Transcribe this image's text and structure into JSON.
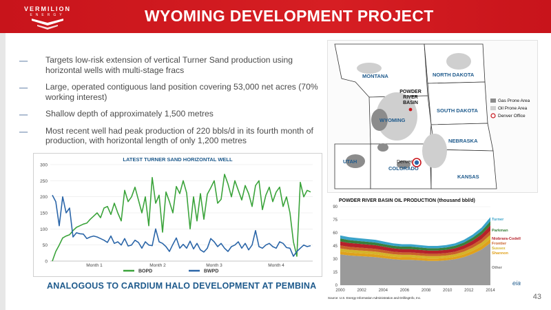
{
  "logo": {
    "name": "VERMILION",
    "sub": "ENERGY"
  },
  "title": "WYOMING DEVELOPMENT PROJECT",
  "bullets": [
    "Targets low-risk extension of vertical Turner Sand production using horizontal wells with multi-stage fracs",
    "Large, operated contiguous land position covering 53,000 net acres (70% working interest)",
    "Shallow depth of approximately 1,500 metres",
    "Most recent well had peak production of 220 bbls/d in its fourth month of production, with horizontal length of only 1,200 metres"
  ],
  "footer_text": "ANALOGOUS TO CARDIUM HALO DEVELOPMENT AT PEMBINA",
  "page_number": "43",
  "map": {
    "states": [
      "MONTANA",
      "NORTH DAKOTA",
      "SOUTH DAKOTA",
      "WYOMING",
      "NEBRASKA",
      "UTAH",
      "COLORADO",
      "KANSAS"
    ],
    "basin_label": [
      "POWDER",
      "RIVER",
      "BASIN"
    ],
    "city": "Denver",
    "legend": [
      "Gas Prone Area",
      "Oil Prone Area",
      "Denver Office"
    ],
    "colors": {
      "gas": "#8c8c8c",
      "oil": "#cfcfcf",
      "office": "#c8141b"
    }
  },
  "chart_data": [
    {
      "type": "line",
      "title": "LATEST TURNER SAND HORIZONTAL WELL",
      "ylim": [
        0,
        300
      ],
      "yticks": [
        "0",
        "50",
        "100",
        "150",
        "200",
        "250",
        "300"
      ],
      "x_labels": [
        "Month 1",
        "Month 2",
        "Month 3",
        "Month 4"
      ],
      "series": [
        {
          "name": "BOPD",
          "color": "#3aa33a",
          "values": [
            0,
            30,
            50,
            72,
            78,
            82,
            95,
            105,
            110,
            115,
            118,
            130,
            140,
            150,
            135,
            165,
            170,
            145,
            180,
            150,
            125,
            220,
            185,
            200,
            230,
            190,
            150,
            200,
            110,
            260,
            180,
            205,
            90,
            215,
            185,
            150,
            232,
            210,
            250,
            212,
            100,
            200,
            125,
            210,
            130,
            208,
            228,
            250,
            180,
            192,
            270,
            240,
            200,
            250,
            220,
            190,
            235,
            210,
            170,
            235,
            250,
            160,
            205,
            230,
            185,
            215,
            230,
            170,
            200,
            150,
            60,
            15,
            245,
            200,
            220,
            215
          ]
        },
        {
          "name": "BWPD",
          "color": "#2a65a8",
          "values": [
            205,
            185,
            110,
            200,
            150,
            165,
            75,
            88,
            85,
            84,
            70,
            75,
            78,
            75,
            70,
            65,
            58,
            78,
            55,
            60,
            50,
            70,
            47,
            50,
            65,
            58,
            40,
            60,
            50,
            48,
            100,
            60,
            55,
            45,
            30,
            52,
            72,
            40,
            52,
            40,
            62,
            38,
            55,
            35,
            28,
            40,
            70,
            60,
            45,
            55,
            40,
            30,
            45,
            50,
            60,
            40,
            55,
            35,
            50,
            95,
            45,
            40,
            50,
            55,
            45,
            40,
            60,
            55,
            42,
            40,
            15,
            30,
            40,
            50,
            45,
            48
          ]
        }
      ]
    },
    {
      "type": "area",
      "title": "POWDER RIVER BASIN OIL PRODUCTION (thousand bbl/d)",
      "ylim": [
        0,
        90
      ],
      "yticks": [
        "0",
        "15",
        "30",
        "45",
        "60",
        "75",
        "90"
      ],
      "x": [
        "2000",
        "2002",
        "2004",
        "2006",
        "2008",
        "2010",
        "2012",
        "2014"
      ],
      "series_labels": [
        "Turner",
        "Parkman",
        "Niobrara-Codell",
        "Frontier",
        "Sussex",
        "Shannon",
        "Other"
      ],
      "source": "Source: U.S. Energy Information Administration and DrillingInfo, Inc.",
      "logo": "eia",
      "totals": [
        57,
        55,
        54,
        53,
        52,
        50,
        48,
        47,
        47,
        46,
        45,
        45,
        46,
        48,
        52,
        58,
        66,
        78
      ]
    }
  ]
}
